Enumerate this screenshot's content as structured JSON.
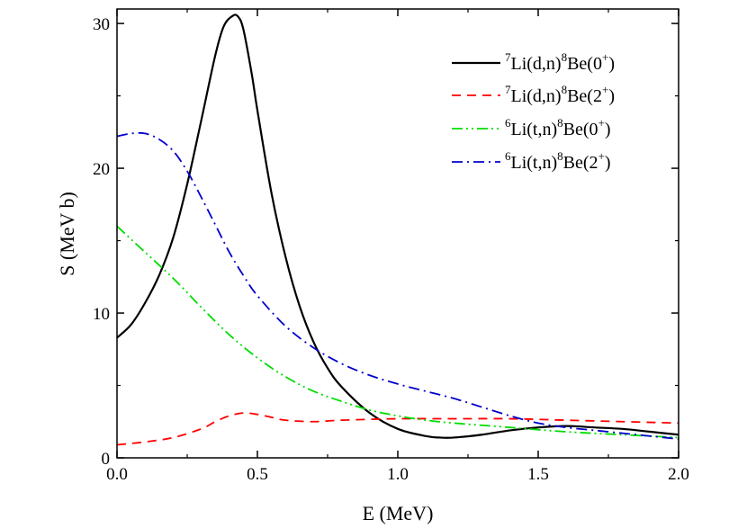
{
  "chart_data": {
    "type": "line",
    "title": "",
    "xlabel": "E (MeV)",
    "ylabel": "S (MeV b)",
    "xlim": [
      0.0,
      2.0
    ],
    "ylim": [
      0,
      31
    ],
    "xticks": [
      0.0,
      0.5,
      1.0,
      1.5,
      2.0
    ],
    "xtick_labels": [
      "0.0",
      "0.5",
      "1.0",
      "1.5",
      "2.0"
    ],
    "yticks": [
      0,
      10,
      20,
      30
    ],
    "ytick_labels": [
      "0",
      "10",
      "20",
      "30"
    ],
    "grid": false,
    "legend_position": "top-right",
    "series": [
      {
        "name": "7Li(d,n)8Be(0+)",
        "legend": {
          "sup1": "7",
          "a": "Li(d,n)",
          "sup2": "8",
          "b": "Be(0",
          "sup3": "+",
          "c": ")"
        },
        "color": "#000000",
        "style": "solid",
        "x": [
          0.0,
          0.05,
          0.1,
          0.15,
          0.2,
          0.25,
          0.3,
          0.35,
          0.38,
          0.41,
          0.43,
          0.45,
          0.48,
          0.5,
          0.55,
          0.6,
          0.65,
          0.7,
          0.75,
          0.8,
          0.9,
          1.0,
          1.1,
          1.15,
          1.2,
          1.3,
          1.4,
          1.5,
          1.6,
          1.7,
          1.8,
          1.9,
          2.0
        ],
        "y": [
          8.3,
          9.2,
          10.7,
          12.6,
          15.2,
          18.9,
          23.3,
          27.8,
          29.8,
          30.5,
          30.5,
          29.6,
          26.5,
          24.0,
          18.3,
          13.9,
          10.5,
          8.0,
          6.2,
          4.9,
          3.1,
          2.0,
          1.5,
          1.4,
          1.4,
          1.6,
          1.9,
          2.1,
          2.2,
          2.1,
          2.0,
          1.8,
          1.6
        ]
      },
      {
        "name": "7Li(d,n)8Be(2+)",
        "legend": {
          "sup1": "7",
          "a": "Li(d,n)",
          "sup2": "8",
          "b": "Be(2",
          "sup3": "+",
          "c": ")"
        },
        "color": "#ff0000",
        "style": "dash",
        "x": [
          0.0,
          0.1,
          0.2,
          0.3,
          0.35,
          0.4,
          0.45,
          0.5,
          0.55,
          0.6,
          0.7,
          0.8,
          1.0,
          1.2,
          1.4,
          1.6,
          1.8,
          2.0
        ],
        "y": [
          0.9,
          1.1,
          1.4,
          2.0,
          2.5,
          2.9,
          3.1,
          3.0,
          2.8,
          2.6,
          2.5,
          2.6,
          2.7,
          2.7,
          2.7,
          2.6,
          2.5,
          2.4
        ]
      },
      {
        "name": "6Li(t,n)8Be(0+)",
        "legend": {
          "sup1": "6",
          "a": "Li(t,n)",
          "sup2": "8",
          "b": "Be(0",
          "sup3": "+",
          "c": ")"
        },
        "color": "#00dd00",
        "style": "dashdotdot",
        "x": [
          0.0,
          0.1,
          0.2,
          0.3,
          0.4,
          0.5,
          0.6,
          0.7,
          0.8,
          0.9,
          1.0,
          1.1,
          1.2,
          1.4,
          1.6,
          1.8,
          2.0
        ],
        "y": [
          16.0,
          14.2,
          12.4,
          10.4,
          8.5,
          6.9,
          5.6,
          4.6,
          3.9,
          3.3,
          2.9,
          2.6,
          2.4,
          2.1,
          1.8,
          1.6,
          1.4
        ]
      },
      {
        "name": "6Li(t,n)8Be(2+)",
        "legend": {
          "sup1": "6",
          "a": "Li(t,n)",
          "sup2": "8",
          "b": "Be(2",
          "sup3": "+",
          "c": ")"
        },
        "color": "#0000cc",
        "style": "dashdot",
        "x": [
          0.0,
          0.05,
          0.1,
          0.15,
          0.2,
          0.25,
          0.3,
          0.35,
          0.4,
          0.45,
          0.5,
          0.6,
          0.7,
          0.8,
          0.9,
          1.0,
          1.1,
          1.2,
          1.3,
          1.4,
          1.5,
          1.6,
          1.7,
          1.8,
          1.9,
          2.0
        ],
        "y": [
          22.2,
          22.4,
          22.4,
          22.0,
          21.2,
          19.8,
          18.0,
          16.1,
          14.2,
          12.6,
          11.2,
          9.1,
          7.6,
          6.5,
          5.7,
          5.1,
          4.6,
          4.1,
          3.5,
          2.9,
          2.4,
          2.1,
          1.9,
          1.7,
          1.5,
          1.3
        ]
      }
    ]
  }
}
